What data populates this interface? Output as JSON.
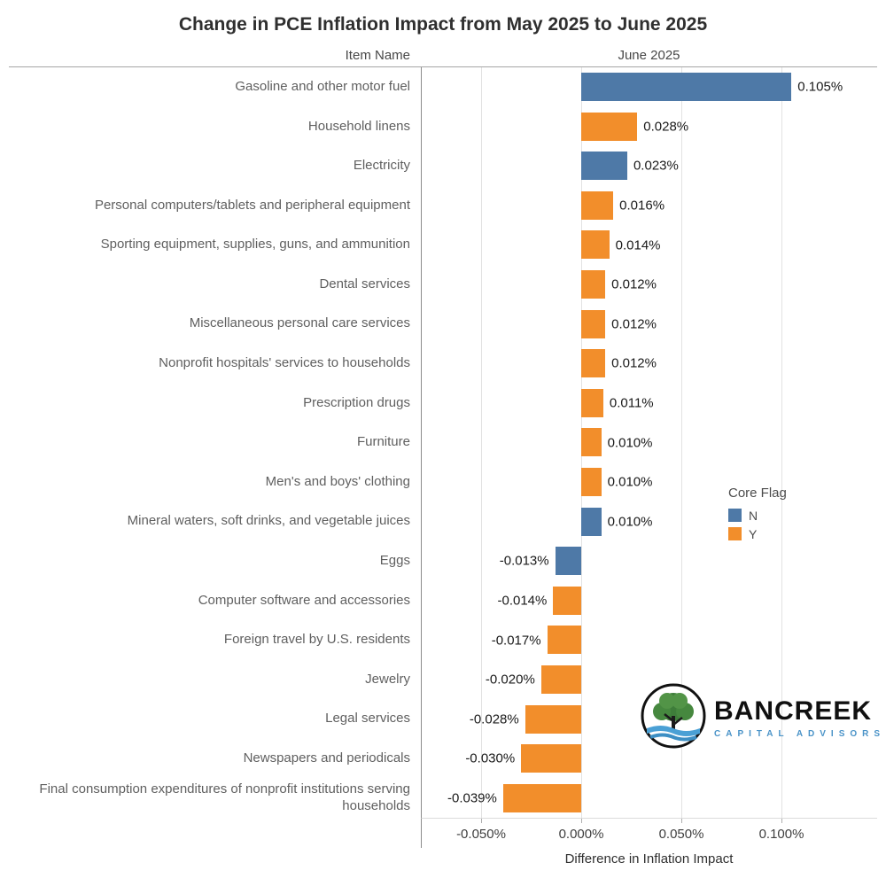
{
  "title": "Change in PCE Inflation Impact from May 2025 to June 2025",
  "columns": {
    "item": "Item Name",
    "period": "June 2025"
  },
  "chart_data": {
    "type": "bar",
    "orientation": "horizontal",
    "title": "Change in PCE Inflation Impact from May 2025 to June 2025",
    "categories": [
      "Gasoline and other motor fuel",
      "Household linens",
      "Electricity",
      "Personal computers/tablets and peripheral equipment",
      "Sporting equipment, supplies, guns, and ammunition",
      "Dental services",
      "Miscellaneous personal care services",
      "Nonprofit hospitals' services to households",
      "Prescription drugs",
      "Furniture",
      "Men's and boys' clothing",
      "Mineral waters, soft drinks, and vegetable juices",
      "Eggs",
      "Computer software and accessories",
      "Foreign travel by U.S. residents",
      "Jewelry",
      "Legal services",
      "Newspapers and periodicals",
      "Final consumption expenditures of nonprofit institutions serving households"
    ],
    "values": [
      0.105,
      0.028,
      0.023,
      0.016,
      0.014,
      0.012,
      0.012,
      0.012,
      0.011,
      0.01,
      0.01,
      0.01,
      -0.013,
      -0.014,
      -0.017,
      -0.02,
      -0.028,
      -0.03,
      -0.039
    ],
    "value_labels": [
      "0.105%",
      "0.028%",
      "0.023%",
      "0.016%",
      "0.014%",
      "0.012%",
      "0.012%",
      "0.012%",
      "0.011%",
      "0.010%",
      "0.010%",
      "0.010%",
      "-0.013%",
      "-0.014%",
      "-0.017%",
      "-0.020%",
      "-0.028%",
      "-0.030%",
      "-0.039%"
    ],
    "core_flags": [
      "N",
      "Y",
      "N",
      "Y",
      "Y",
      "Y",
      "Y",
      "Y",
      "Y",
      "Y",
      "Y",
      "N",
      "N",
      "Y",
      "Y",
      "Y",
      "Y",
      "Y",
      "Y"
    ],
    "series_colors": {
      "N": "#4e79a7",
      "Y": "#f28e2b"
    },
    "xlabel": "Difference in Inflation Impact",
    "x_ticks": [
      -0.05,
      0.0,
      0.05,
      0.1
    ],
    "x_tick_labels": [
      "-0.050%",
      "0.000%",
      "0.050%",
      "0.100%"
    ],
    "xlim": [
      -0.08,
      0.148
    ],
    "grid": true,
    "legend": {
      "title": "Core Flag",
      "position": "right",
      "entries": [
        {
          "label": "N",
          "color": "#4e79a7"
        },
        {
          "label": "Y",
          "color": "#f28e2b"
        }
      ]
    }
  },
  "logo": {
    "name": "BANCREEK",
    "subtitle": "CAPITAL ADVISORS"
  }
}
